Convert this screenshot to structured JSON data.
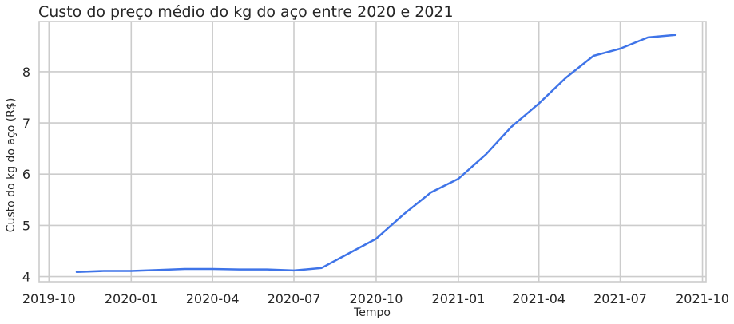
{
  "chart_data": {
    "type": "line",
    "title": "Custo do preço médio do kg do aço entre 2020 e 2021",
    "xlabel": "Tempo",
    "ylabel": "Custo do kg do aço (R$)",
    "x_ticks": [
      "2019-10",
      "2020-01",
      "2020-04",
      "2020-07",
      "2020-10",
      "2021-01",
      "2021-04",
      "2021-07",
      "2021-10"
    ],
    "y_ticks": [
      4,
      5,
      6,
      7,
      8
    ],
    "xlim": [
      "2019-09-20",
      "2021-10-05"
    ],
    "ylim": [
      3.9,
      8.98
    ],
    "grid": true,
    "series": [
      {
        "color": "#3f74e8",
        "x": [
          "2019-11-01",
          "2019-12-01",
          "2020-01-01",
          "2020-02-01",
          "2020-03-01",
          "2020-04-01",
          "2020-05-01",
          "2020-06-01",
          "2020-07-01",
          "2020-08-01",
          "2020-09-01",
          "2020-10-01",
          "2020-11-01",
          "2020-12-01",
          "2021-01-01",
          "2021-02-01",
          "2021-03-01",
          "2021-04-01",
          "2021-05-01",
          "2021-06-01",
          "2021-07-01",
          "2021-08-01",
          "2021-09-01"
        ],
        "values": [
          4.09,
          4.11,
          4.11,
          4.13,
          4.15,
          4.15,
          4.14,
          4.14,
          4.12,
          4.17,
          4.46,
          4.74,
          5.22,
          5.64,
          5.91,
          6.39,
          6.92,
          7.38,
          7.88,
          8.31,
          8.45,
          8.67,
          8.72
        ]
      }
    ]
  }
}
